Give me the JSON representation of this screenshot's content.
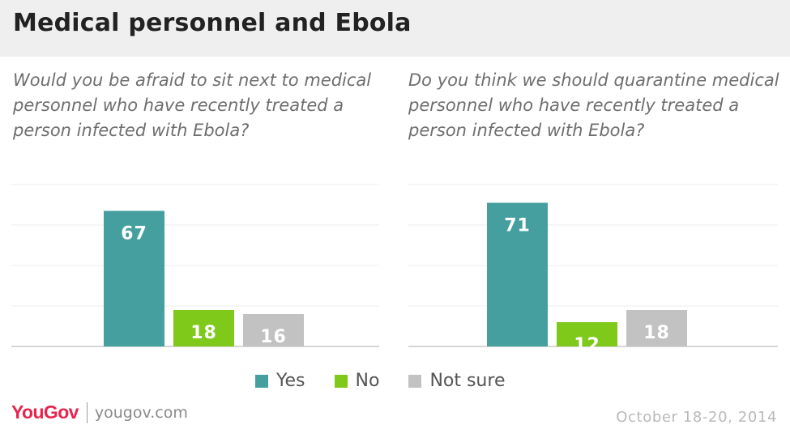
{
  "title": "Medical personnel and Ebola",
  "colors": {
    "yes": "#469f9f",
    "no": "#7ec91a",
    "not_sure": "#c2c2c2",
    "grid": "#eeeeee",
    "axis": "#c8c8c8"
  },
  "legend": [
    {
      "label": "Yes",
      "color": "#469f9f"
    },
    {
      "label": "No",
      "color": "#7ec91a"
    },
    {
      "label": "Not sure",
      "color": "#c2c2c2"
    }
  ],
  "chart_data": [
    {
      "type": "bar",
      "title": "Would you be afraid to sit next to medical personnel who have recently treated a person infected with Ebola?",
      "categories": [
        "Yes",
        "No",
        "Not sure"
      ],
      "values": [
        67,
        18,
        16
      ],
      "ylim": [
        0,
        80
      ],
      "grid": true,
      "legend": "bottom"
    },
    {
      "type": "bar",
      "title": "Do you think we should quarantine medical personnel who have recently treated a person infected with Ebola?",
      "categories": [
        "Yes",
        "No",
        "Not sure"
      ],
      "values": [
        71,
        12,
        18
      ],
      "ylim": [
        0,
        80
      ],
      "grid": true,
      "legend": "bottom"
    }
  ],
  "footer": {
    "logo": "YouGov",
    "site": "yougov.com",
    "date": "October 18-20, 2014"
  }
}
